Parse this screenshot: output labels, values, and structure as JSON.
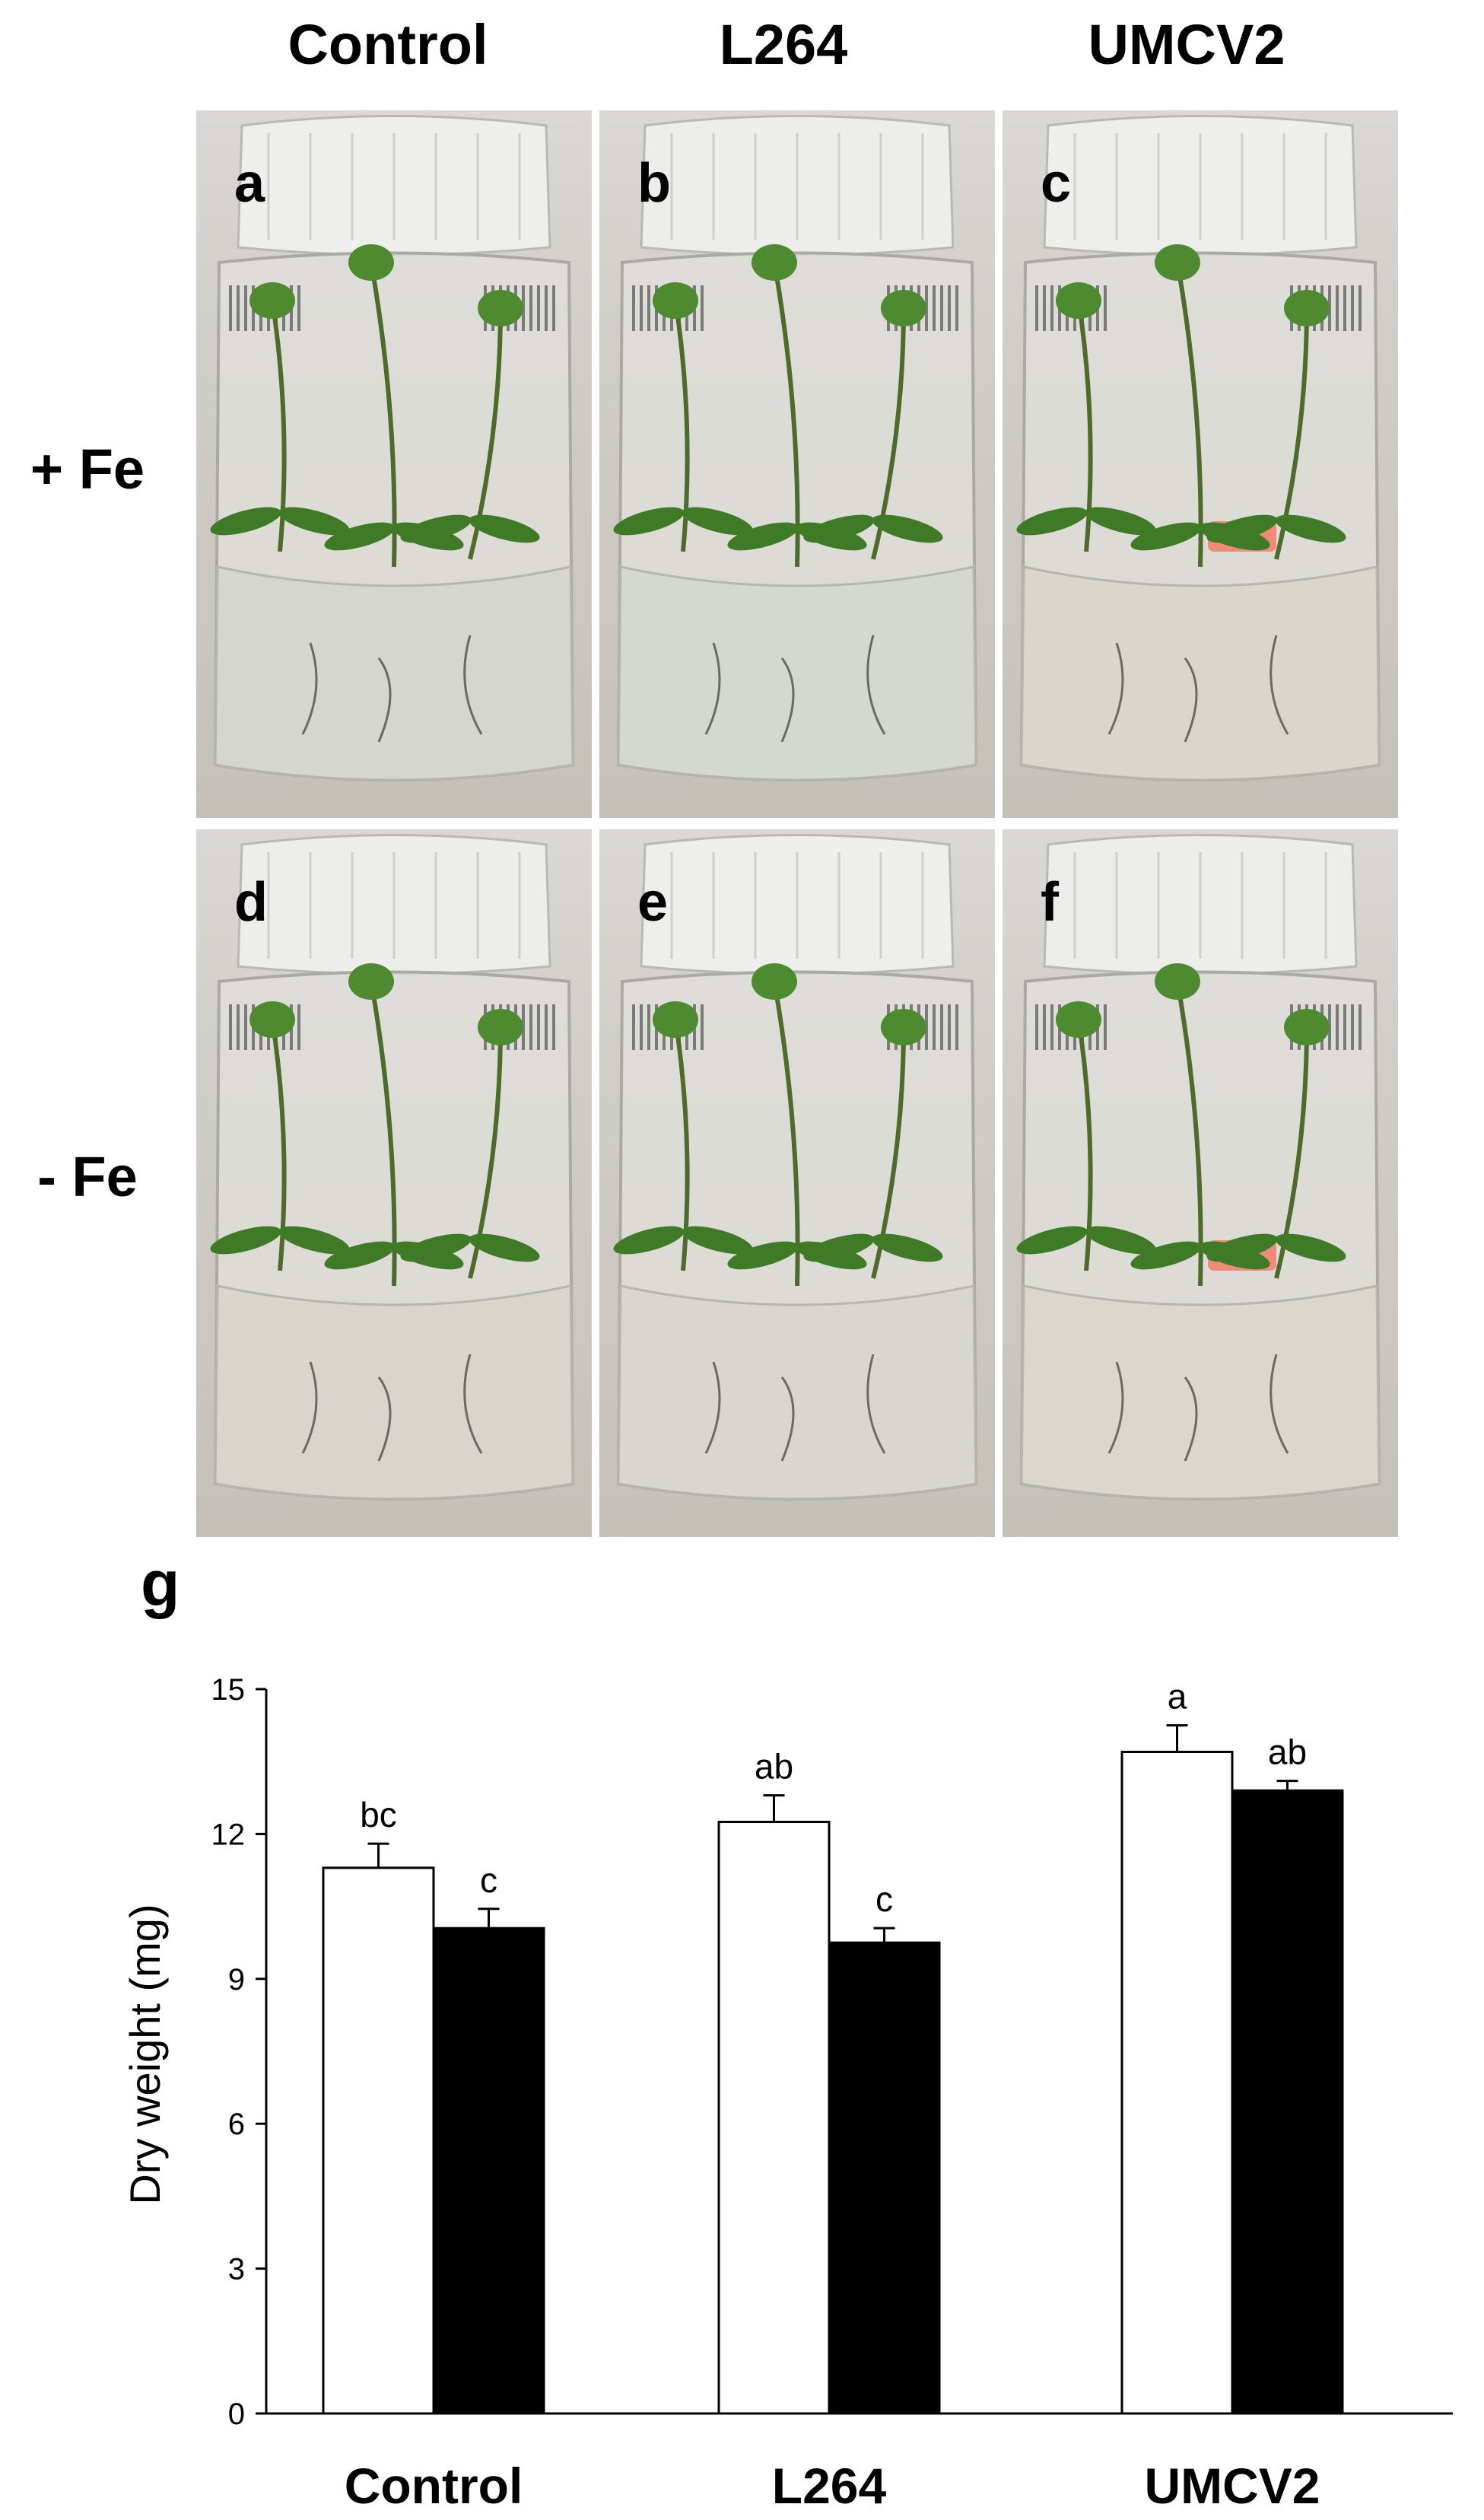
{
  "figure": {
    "column_headers": [
      "Control",
      "L264",
      "UMCV2"
    ],
    "row_labels": [
      "+ Fe",
      "- Fe"
    ],
    "panels": [
      {
        "letter": "a"
      },
      {
        "letter": "b"
      },
      {
        "letter": "c"
      },
      {
        "letter": "d"
      },
      {
        "letter": "e"
      },
      {
        "letter": "f"
      }
    ]
  },
  "chart_data": {
    "panel_letter": "g",
    "type": "bar",
    "categories": [
      "Control",
      "L264",
      "UMCV2"
    ],
    "ylabel": "Dry weight (mg)",
    "xlabel": "",
    "ylim": [
      0,
      15
    ],
    "yticks": [
      0,
      3,
      6,
      9,
      12,
      15
    ],
    "grid": false,
    "legend": "none",
    "series": [
      {
        "fill": "#ffffff",
        "values": [
          11.3,
          12.25,
          13.7
        ],
        "errors": [
          0.5,
          0.55,
          0.55
        ],
        "letters": [
          "bc",
          "ab",
          "a"
        ]
      },
      {
        "fill": "#000000",
        "values": [
          10.05,
          9.75,
          12.9
        ],
        "errors": [
          0.4,
          0.3,
          0.2
        ],
        "letters": [
          "c",
          "c",
          "ab"
        ]
      }
    ]
  }
}
